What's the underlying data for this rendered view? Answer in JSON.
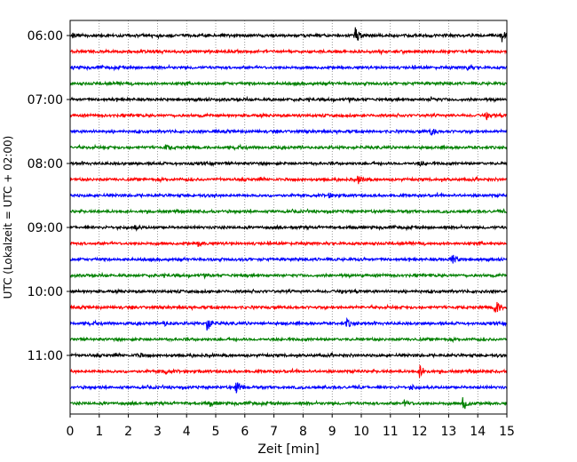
{
  "chart_data": {
    "type": "line",
    "xlabel": "Zeit  [min]",
    "ylabel": "UTC (Lokalzeit = UTC + 02:00)",
    "xlim": [
      0,
      15
    ],
    "x_ticks": [
      0,
      1,
      2,
      3,
      4,
      5,
      6,
      7,
      8,
      9,
      10,
      11,
      12,
      13,
      14,
      15
    ],
    "y_tick_labels": [
      "06:00",
      "07:00",
      "08:00",
      "09:00",
      "10:00",
      "11:00"
    ],
    "grid": "vertical dotted",
    "trace_colors": [
      "#000000",
      "#ff0000",
      "#0000ff",
      "#008000"
    ],
    "traces": [
      {
        "start": "06:00",
        "color": "#000000",
        "events": [
          [
            9.8,
            1.0
          ],
          [
            14.8,
            0.9
          ],
          [
            0.1,
            0.3
          ]
        ]
      },
      {
        "start": "06:15",
        "color": "#ff0000",
        "events": []
      },
      {
        "start": "06:30",
        "color": "#0000ff",
        "events": [
          [
            13.6,
            0.4
          ]
        ]
      },
      {
        "start": "06:45",
        "color": "#008000",
        "events": []
      },
      {
        "start": "07:00",
        "color": "#000000",
        "events": [
          [
            12.4,
            0.3
          ]
        ]
      },
      {
        "start": "07:15",
        "color": "#ff0000",
        "events": [
          [
            14.3,
            0.3
          ]
        ]
      },
      {
        "start": "07:30",
        "color": "#0000ff",
        "events": [
          [
            12.4,
            0.5
          ]
        ]
      },
      {
        "start": "07:45",
        "color": "#008000",
        "events": [
          [
            3.3,
            0.3
          ]
        ]
      },
      {
        "start": "08:00",
        "color": "#000000",
        "events": [
          [
            12.0,
            0.3
          ]
        ]
      },
      {
        "start": "08:15",
        "color": "#ff0000",
        "events": [
          [
            9.9,
            0.5
          ]
        ]
      },
      {
        "start": "08:30",
        "color": "#0000ff",
        "events": [
          [
            8.9,
            0.3
          ]
        ]
      },
      {
        "start": "08:45",
        "color": "#008000",
        "events": []
      },
      {
        "start": "09:00",
        "color": "#000000",
        "events": [
          [
            2.2,
            0.3
          ]
        ]
      },
      {
        "start": "09:15",
        "color": "#ff0000",
        "events": [
          [
            4.4,
            0.3
          ]
        ]
      },
      {
        "start": "09:30",
        "color": "#0000ff",
        "events": [
          [
            13.1,
            0.8
          ]
        ]
      },
      {
        "start": "09:45",
        "color": "#008000",
        "events": []
      },
      {
        "start": "10:00",
        "color": "#000000",
        "events": []
      },
      {
        "start": "10:15",
        "color": "#ff0000",
        "events": [
          [
            14.6,
            1.0
          ]
        ]
      },
      {
        "start": "10:30",
        "color": "#0000ff",
        "events": [
          [
            4.7,
            0.9
          ],
          [
            9.5,
            0.5
          ],
          [
            3.2,
            0.3
          ]
        ]
      },
      {
        "start": "10:45",
        "color": "#008000",
        "events": []
      },
      {
        "start": "11:00",
        "color": "#000000",
        "events": [
          [
            2.3,
            0.3
          ]
        ]
      },
      {
        "start": "11:15",
        "color": "#ff0000",
        "events": [
          [
            12.0,
            0.8
          ],
          [
            3.2,
            0.3
          ]
        ]
      },
      {
        "start": "11:30",
        "color": "#0000ff",
        "events": [
          [
            5.7,
            0.8
          ],
          [
            11.7,
            0.3
          ]
        ]
      },
      {
        "start": "11:45",
        "color": "#008000",
        "events": [
          [
            13.5,
            0.9
          ],
          [
            4.8,
            0.3
          ],
          [
            11.5,
            0.3
          ]
        ]
      }
    ]
  }
}
